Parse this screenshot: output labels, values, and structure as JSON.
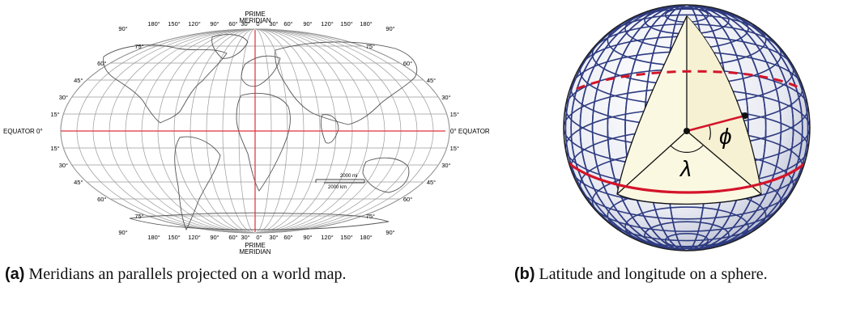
{
  "panel_a": {
    "top_label": [
      "PRIME",
      "MERIDIAN"
    ],
    "bottom_label": [
      "PRIME",
      "MERIDIAN"
    ],
    "longitudes_top": [
      "90°",
      "180°",
      "150°",
      "120°",
      "90°",
      "60°",
      "30°",
      "0°",
      "30°",
      "60°",
      "90°",
      "120°",
      "150°",
      "180°",
      "90°"
    ],
    "longitudes_bottom": [
      "90°",
      "180°",
      "150°",
      "120°",
      "90°",
      "60°",
      "30°",
      "0°",
      "30°",
      "60°",
      "90°",
      "120°",
      "150°",
      "180°",
      "90°"
    ],
    "latitudes_north": [
      "75°",
      "60°",
      "45°",
      "30°",
      "15°"
    ],
    "latitudes_south": [
      "15°",
      "30°",
      "45°",
      "60°",
      "75°"
    ],
    "equator_left": "EQUATOR 0°",
    "equator_right": "0° EQUATOR",
    "scale_mi": "2000 mi",
    "scale_km": "2000 km",
    "caption_tag": "(a)",
    "caption_text": " Meridians an parallels projected on a world map."
  },
  "panel_b": {
    "phi": "ϕ",
    "lambda": "λ",
    "caption_tag": "(b)",
    "caption_text": " Latitude and longitude on a sphere."
  },
  "colors": {
    "grid": "#9a9a9a",
    "coast": "#555555",
    "meridian_red": "#e0303c",
    "sphere_grid": "#2e3b80",
    "sphere_red": "#d4142a",
    "wedge": "#fbf8e2"
  }
}
